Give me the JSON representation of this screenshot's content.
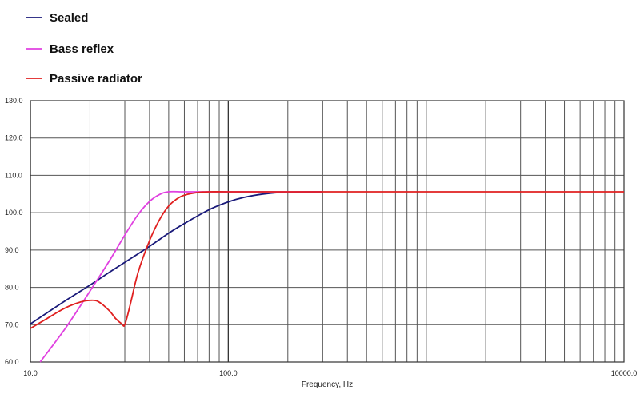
{
  "chart_data": {
    "type": "line",
    "title": "",
    "xlabel": "Frequency, Hz",
    "ylabel": "",
    "x_scale": "log",
    "xlim": [
      10,
      10000
    ],
    "ylim": [
      60,
      130
    ],
    "grid": true,
    "legend_position": "top-left",
    "x_tick_labels": [
      {
        "value": 10,
        "label": "10.0"
      },
      {
        "value": 100,
        "label": "100.0"
      },
      {
        "value": 10000,
        "label": "10000.0"
      }
    ],
    "y_tick_labels": [
      {
        "value": 130,
        "label": "130.0"
      },
      {
        "value": 120,
        "label": "120.0"
      },
      {
        "value": 110,
        "label": "110.0"
      },
      {
        "value": 100,
        "label": "100.0"
      },
      {
        "value": 90,
        "label": "90.0"
      },
      {
        "value": 80,
        "label": "80.0"
      },
      {
        "value": 70,
        "label": "70.0"
      },
      {
        "value": 60,
        "label": "60.0"
      }
    ],
    "series": [
      {
        "name": "Sealed",
        "color": "#1a1a7a",
        "x": [
          10,
          12,
          15,
          20,
          25,
          30,
          40,
          50,
          60,
          80,
          100,
          120,
          150,
          200,
          300
        ],
        "y": [
          70.2,
          73,
          76.4,
          80.6,
          84,
          86.7,
          91,
          94.5,
          97.1,
          100.8,
          102.9,
          104.1,
          105,
          105.5,
          105.6
        ]
      },
      {
        "name": "Bass reflex",
        "color": "#e040e0",
        "x": [
          11.2,
          15,
          20,
          25,
          30,
          35,
          40,
          45,
          50,
          60,
          80,
          100,
          200,
          300
        ],
        "y": [
          60,
          69,
          79,
          87,
          94,
          99.5,
          103,
          104.9,
          105.6,
          105.6,
          105.6,
          105.6,
          105.6,
          105.6
        ]
      },
      {
        "name": "Passive radiator",
        "color": "#e02020",
        "x": [
          10,
          12,
          15,
          18,
          20,
          22,
          25,
          27,
          29,
          30,
          32,
          35,
          40,
          45,
          50,
          55,
          60,
          70,
          80,
          100,
          200,
          500,
          1000,
          10000
        ],
        "y": [
          69,
          71.5,
          74.5,
          76.1,
          76.5,
          76.2,
          73.8,
          71.6,
          70.2,
          70,
          75.5,
          84,
          92.5,
          98.2,
          101.8,
          103.7,
          104.7,
          105.4,
          105.6,
          105.6,
          105.6,
          105.6,
          105.6,
          105.6
        ]
      }
    ]
  }
}
